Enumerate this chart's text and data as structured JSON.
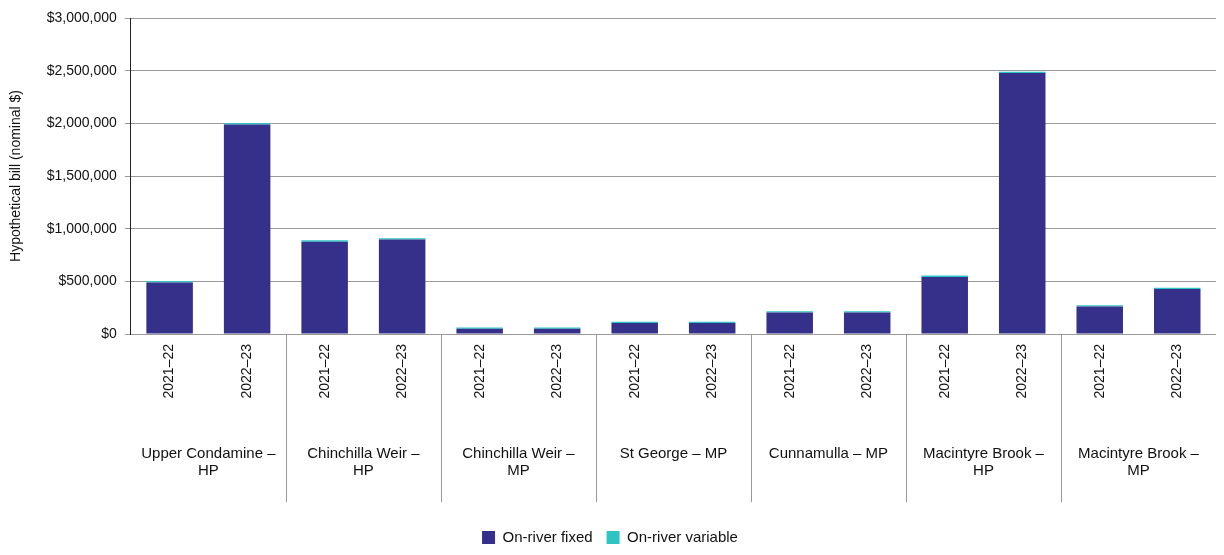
{
  "chart_data": {
    "type": "bar",
    "stacked": true,
    "ylabel": "Hypothetical bill (nominal $)",
    "categories": [
      "2021–22",
      "2022–23",
      "2021–22",
      "2022–23",
      "2021–22",
      "2022–23",
      "2021–22",
      "2022–23",
      "2021–22",
      "2022–23",
      "2021–22",
      "2022–23",
      "2021–22",
      "2022–23"
    ],
    "series": [
      {
        "name": "On-river fixed",
        "color": "#35308a",
        "values": [
          490000,
          1990000,
          876000,
          897000,
          50000,
          50000,
          105000,
          105000,
          203000,
          203000,
          542000,
          2478000,
          260000,
          428000
        ]
      },
      {
        "name": "On-river variable",
        "color": "#2ec4c4",
        "values": [
          12000,
          12000,
          14000,
          13000,
          12000,
          12000,
          12000,
          12000,
          12000,
          12000,
          13000,
          12000,
          12000,
          12000
        ]
      }
    ],
    "annotations": [
      "Upper Condamine – HP",
      "Chinchilla Weir – HP",
      "Chinchilla Weir – MP",
      "St George – MP",
      "Cunnamulla – MP",
      "Macintyre Brook – HP",
      "Macintyre Brook – MP"
    ],
    "ylim": [
      0,
      3000000
    ],
    "yticks": [
      {
        "value": 0,
        "label": "$0"
      },
      {
        "value": 500000,
        "label": "$500,000"
      },
      {
        "value": 1000000,
        "label": "$1,000,000"
      },
      {
        "value": 1500000,
        "label": "$1,500,000"
      },
      {
        "value": 2000000,
        "label": "$2,000,000"
      },
      {
        "value": 2500000,
        "label": "$2,500,000"
      },
      {
        "value": 3000000,
        "label": "$3,000,000"
      }
    ],
    "grid": "y",
    "legend": "bottom"
  }
}
